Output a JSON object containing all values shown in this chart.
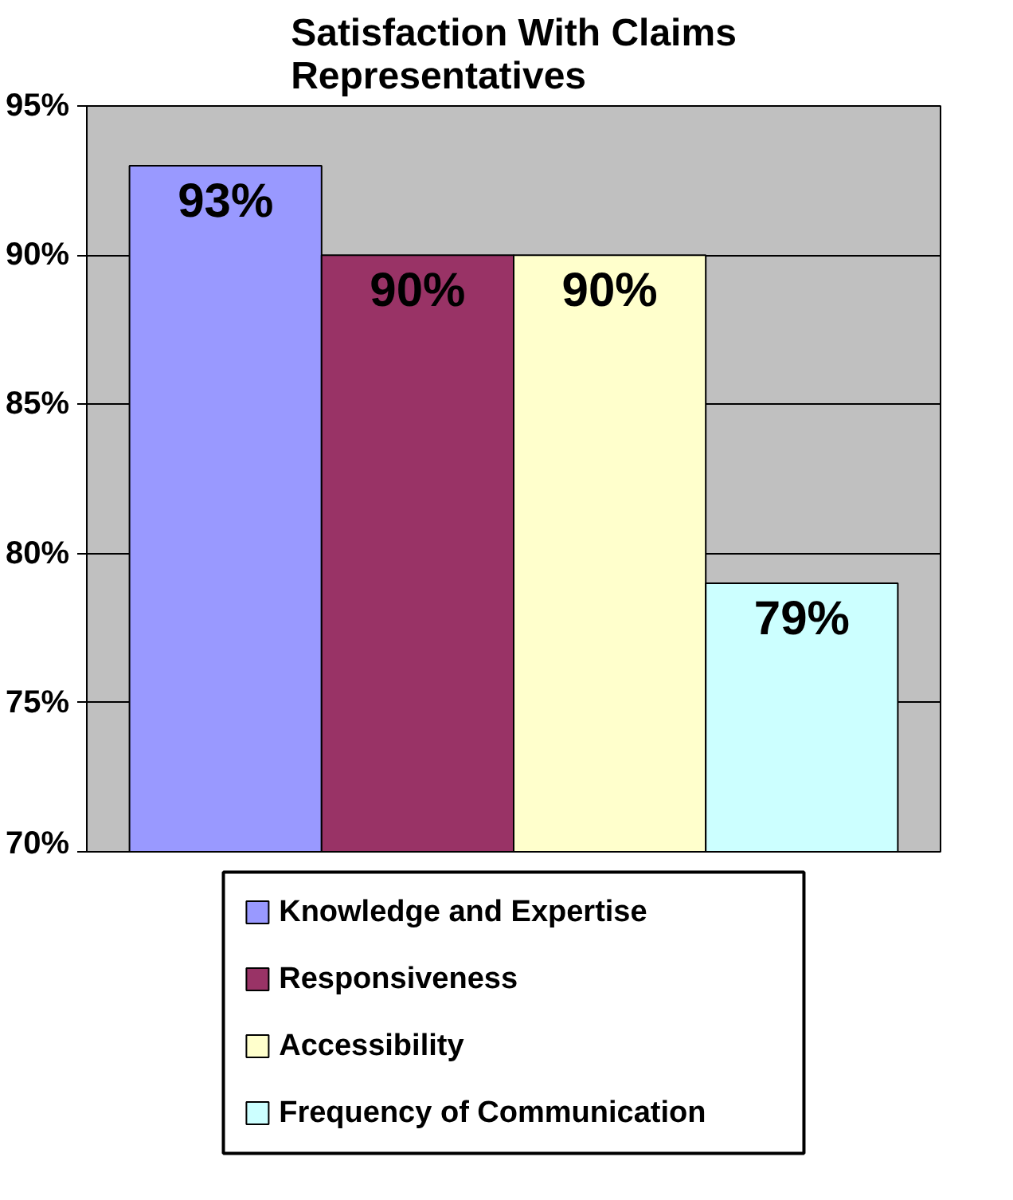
{
  "chart_data": {
    "type": "bar",
    "title": "Satisfaction With Claims\nRepresentatives",
    "categories": [
      null
    ],
    "series": [
      {
        "name": "Knowledge and Expertise",
        "color": "#9999ff",
        "values": [
          93
        ],
        "value_labels": [
          "93%"
        ]
      },
      {
        "name": "Responsiveness",
        "color": "#993366",
        "values": [
          90
        ],
        "value_labels": [
          "90%"
        ]
      },
      {
        "name": "Accessibility",
        "color": "#ffffcc",
        "values": [
          90
        ],
        "value_labels": [
          "90%"
        ]
      },
      {
        "name": "Frequency of Communication",
        "color": "#ccffff",
        "values": [
          79
        ],
        "value_labels": [
          "79%"
        ]
      }
    ],
    "ylim": [
      70,
      95
    ],
    "yticks": [
      {
        "value": 70,
        "label": "70%"
      },
      {
        "value": 75,
        "label": "75%"
      },
      {
        "value": 80,
        "label": "80%"
      },
      {
        "value": 85,
        "label": "85%"
      },
      {
        "value": 90,
        "label": "90%"
      },
      {
        "value": 95,
        "label": "95%"
      }
    ],
    "grid": "y",
    "legend": "bottom"
  }
}
